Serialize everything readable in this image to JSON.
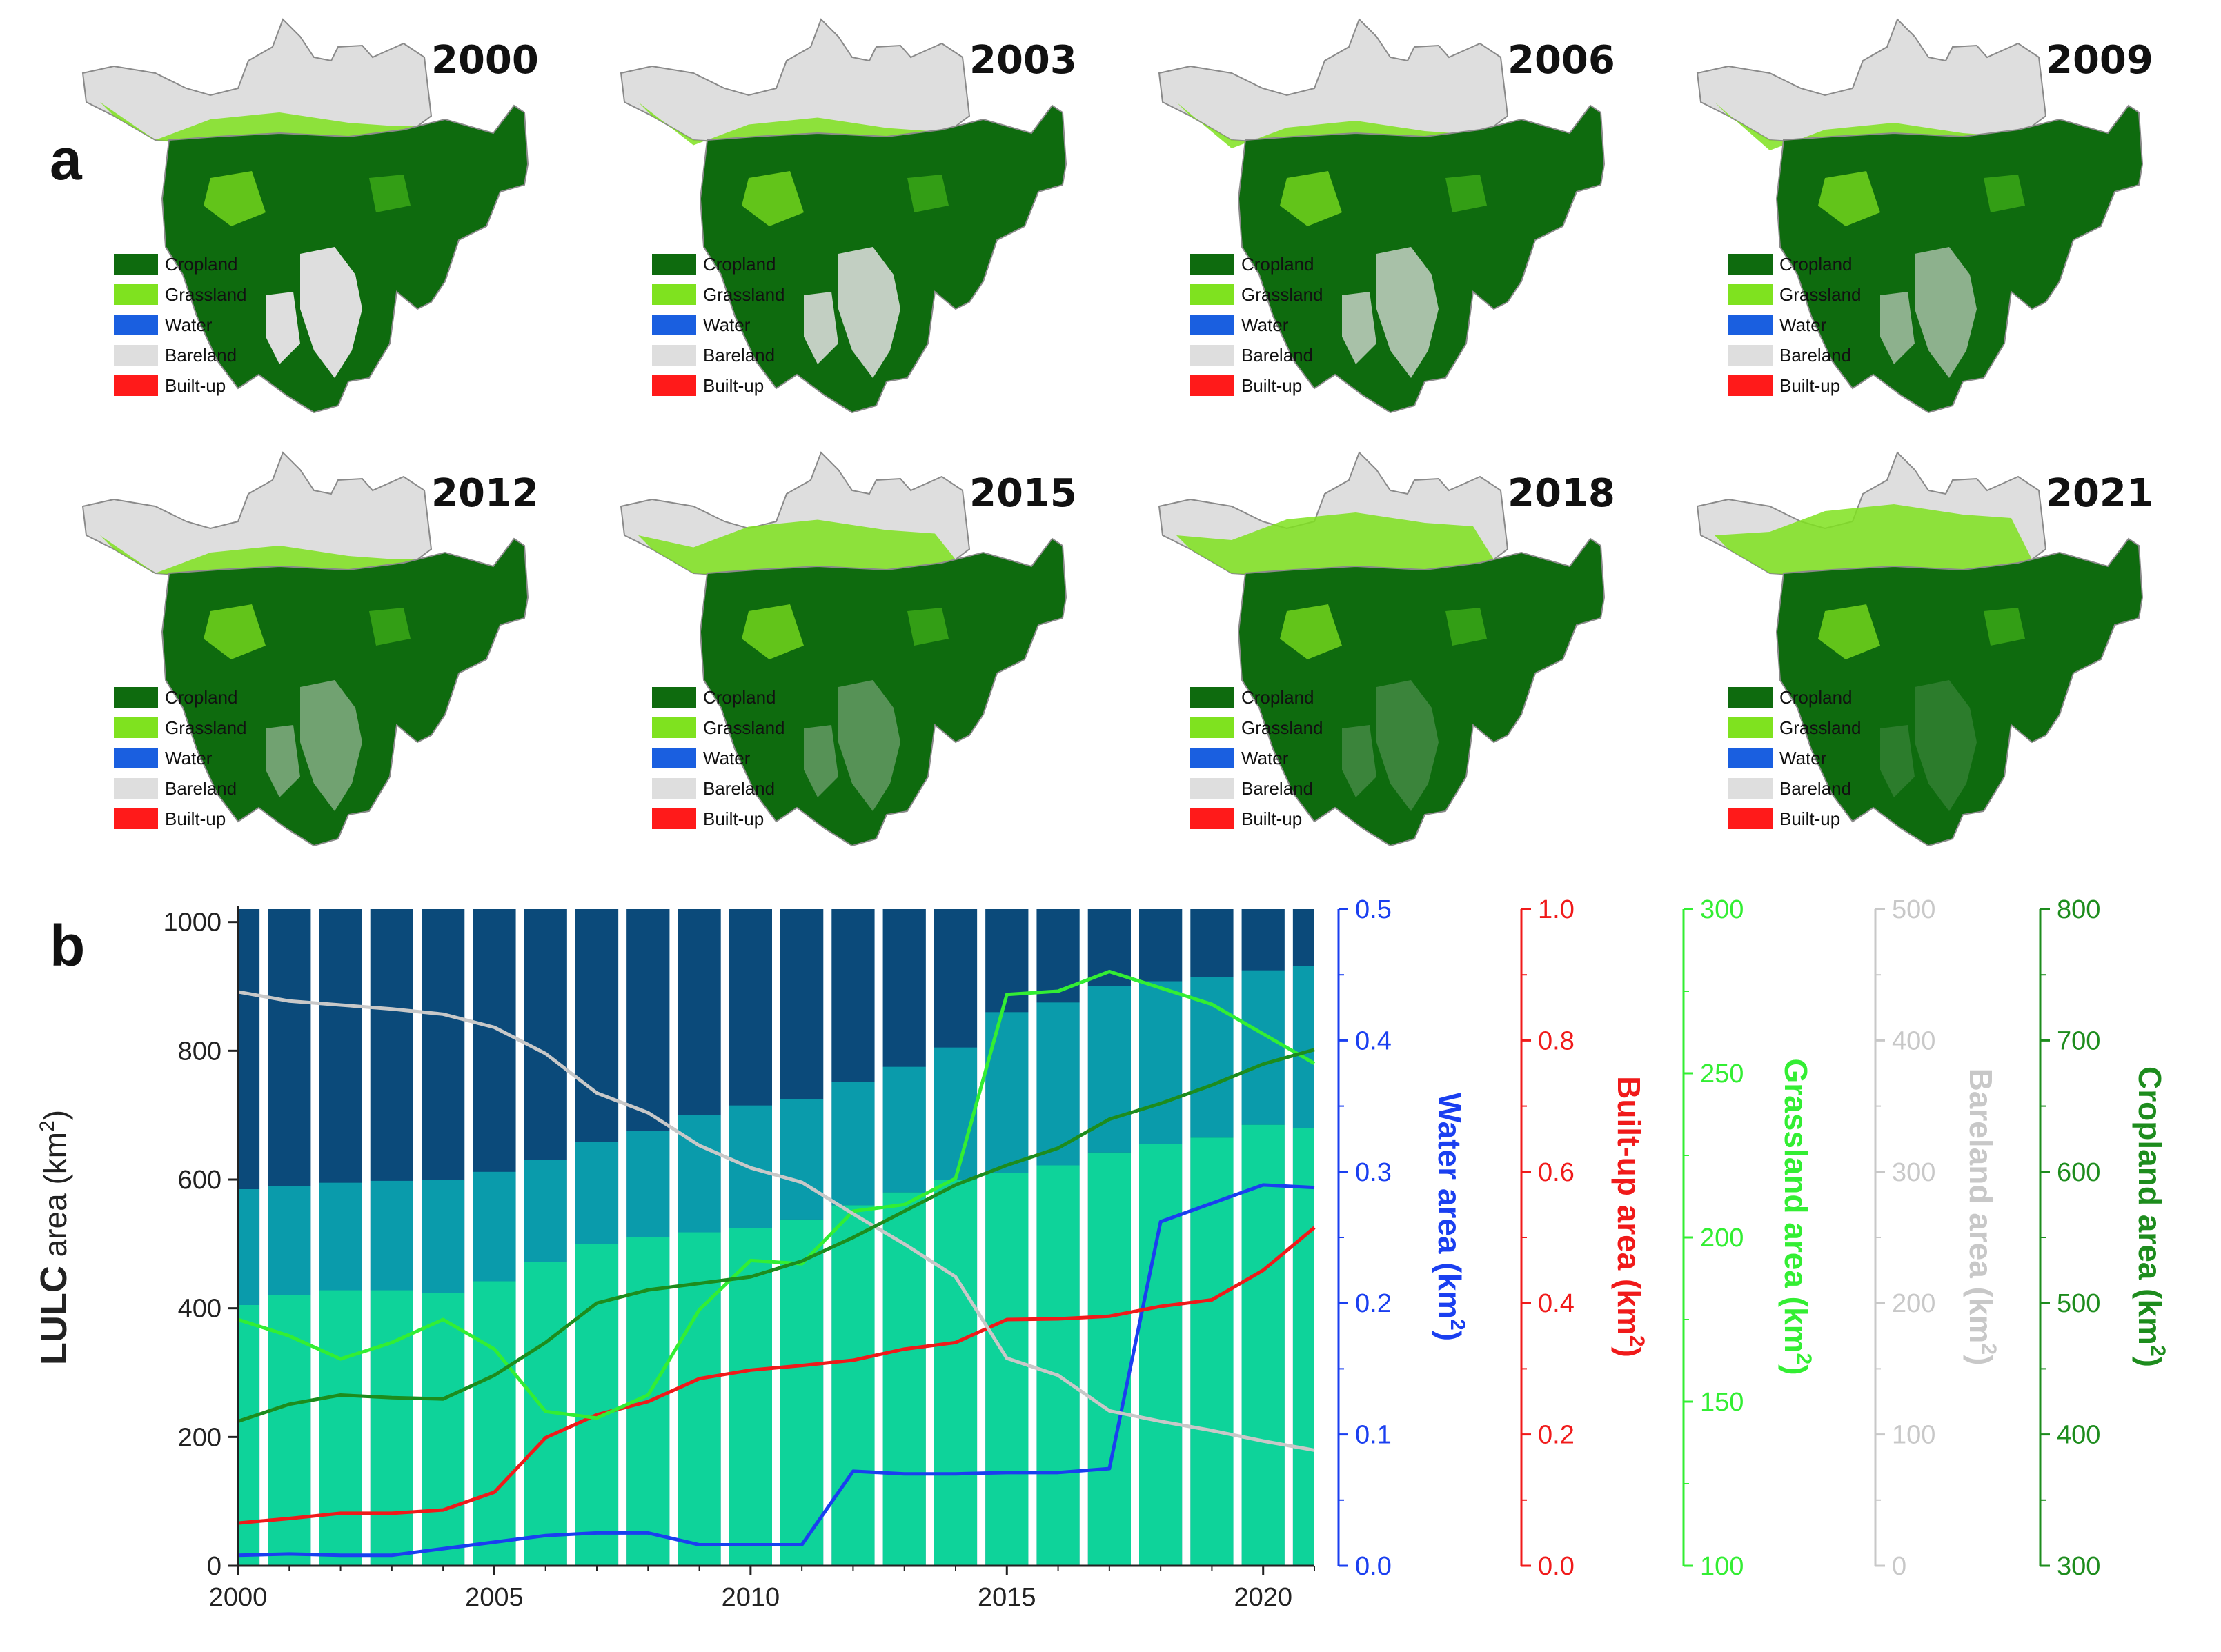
{
  "panels": {
    "a": "a",
    "b": "b"
  },
  "maps": {
    "years": [
      "2000",
      "2003",
      "2006",
      "2009",
      "2012",
      "2015",
      "2018",
      "2021"
    ],
    "grassland_extent": [
      0.3,
      0.25,
      0.22,
      0.2,
      0.3,
      0.55,
      0.62,
      0.7
    ],
    "legend": [
      {
        "label": "Cropland",
        "color": "#0e6b0e"
      },
      {
        "label": "Grassland",
        "color": "#7fe21f"
      },
      {
        "label": "Water",
        "color": "#1a5fe0"
      },
      {
        "label": "Bareland",
        "color": "#dedede"
      },
      {
        "label": "Built-up",
        "color": "#ff1a1a"
      }
    ]
  },
  "chart_data": {
    "type": "bar",
    "title": "",
    "xlabel": "",
    "x": [
      2000,
      2001,
      2002,
      2003,
      2004,
      2005,
      2006,
      2007,
      2008,
      2009,
      2010,
      2011,
      2012,
      2013,
      2014,
      2015,
      2016,
      2017,
      2018,
      2019,
      2020,
      2021
    ],
    "xlim": [
      2000,
      2021
    ],
    "x_ticks": [
      "2000",
      "2005",
      "2010",
      "2015",
      "2020"
    ],
    "stacked_bars": {
      "ylabel_main": "LULC",
      "ylabel_rest": " area (km",
      "ylabel_sup": "2",
      "ylabel_close": ")",
      "ylim": [
        0,
        1020
      ],
      "ticks": [
        "0",
        "200",
        "400",
        "600",
        "800",
        "1000"
      ],
      "background_color": "#0b4a7a",
      "layers": [
        {
          "name": "bottom",
          "color": "#0ed39a",
          "tops": [
            405,
            420,
            428,
            428,
            424,
            442,
            472,
            500,
            510,
            518,
            525,
            538,
            560,
            580,
            600,
            610,
            622,
            642,
            655,
            665,
            685,
            680
          ]
        },
        {
          "name": "middle",
          "color": "#0a9bab",
          "tops": [
            585,
            590,
            595,
            598,
            600,
            612,
            630,
            658,
            675,
            700,
            715,
            725,
            752,
            775,
            805,
            860,
            875,
            900,
            908,
            915,
            925,
            932
          ]
        }
      ]
    },
    "series": [
      {
        "name": "Water area",
        "unit_label": "Water area (km",
        "color": "#1a3ff0",
        "ylim": [
          0,
          0.5
        ],
        "ticks": [
          "0.0",
          "0.1",
          "0.2",
          "0.3",
          "0.4",
          "0.5"
        ],
        "values": [
          0.008,
          0.009,
          0.008,
          0.008,
          0.013,
          0.018,
          0.023,
          0.025,
          0.025,
          0.016,
          0.016,
          0.016,
          0.072,
          0.07,
          0.07,
          0.071,
          0.071,
          0.074,
          0.262,
          0.276,
          0.29,
          0.288
        ]
      },
      {
        "name": "Built-up area",
        "unit_label": "Built-up area (km",
        "color": "#f01a1a",
        "ylim": [
          0,
          1.0
        ],
        "ticks": [
          "0.0",
          "0.2",
          "0.4",
          "0.6",
          "0.8",
          "1.0"
        ],
        "values": [
          0.065,
          0.072,
          0.08,
          0.08,
          0.085,
          0.112,
          0.195,
          0.23,
          0.25,
          0.285,
          0.298,
          0.305,
          0.313,
          0.33,
          0.34,
          0.375,
          0.376,
          0.38,
          0.395,
          0.405,
          0.45,
          0.515
        ]
      },
      {
        "name": "Grassland area",
        "unit_label": "Grassland area (km",
        "color": "#33ee33",
        "ylim": [
          100,
          300
        ],
        "ticks": [
          "100",
          "150",
          "200",
          "250",
          "300"
        ],
        "values": [
          175,
          170,
          163,
          168,
          175,
          166,
          147,
          145,
          152,
          178,
          193,
          192,
          208,
          210,
          218,
          274,
          275,
          281,
          276,
          271,
          262,
          253
        ]
      },
      {
        "name": "Bareland area",
        "unit_label": "Bareland area (km",
        "color": "#c8c8c8",
        "ylim": [
          0,
          500
        ],
        "ticks": [
          "0",
          "100",
          "200",
          "300",
          "400",
          "500"
        ],
        "values": [
          437,
          430,
          427,
          424,
          420,
          410,
          390,
          360,
          345,
          320,
          303,
          292,
          268,
          245,
          220,
          158,
          145,
          118,
          110,
          103,
          95,
          88
        ]
      },
      {
        "name": "Cropland area",
        "unit_label": "Cropland area (km",
        "color": "#1d8c1d",
        "ylim": [
          300,
          800
        ],
        "ticks": [
          "300",
          "400",
          "500",
          "600",
          "700",
          "800"
        ],
        "values": [
          410,
          423,
          430,
          428,
          427,
          445,
          470,
          500,
          510,
          515,
          520,
          532,
          550,
          570,
          590,
          605,
          618,
          640,
          652,
          666,
          682,
          693
        ]
      }
    ]
  }
}
